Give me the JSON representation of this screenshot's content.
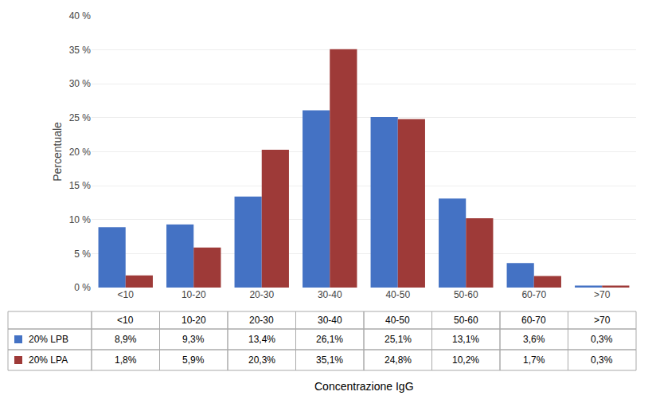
{
  "chart_data": {
    "type": "bar",
    "categories": [
      "<10",
      "10-20",
      "20-30",
      "30-40",
      "40-50",
      "50-60",
      "60-70",
      ">70"
    ],
    "series": [
      {
        "name": "20% LPB",
        "color": "#4472C4",
        "values": [
          8.9,
          9.3,
          13.4,
          26.1,
          25.1,
          13.1,
          3.6,
          0.3
        ],
        "value_labels": [
          "8,9%",
          "9,3%",
          "13,4%",
          "26,1%",
          "25,1%",
          "13,1%",
          "3,6%",
          "0,3%"
        ]
      },
      {
        "name": "20% LPA",
        "color": "#9E3A38",
        "values": [
          1.8,
          5.9,
          20.3,
          35.1,
          24.8,
          10.2,
          1.7,
          0.3
        ],
        "value_labels": [
          "1,8%",
          "5,9%",
          "20,3%",
          "35,1%",
          "24,8%",
          "10,2%",
          "1,7%",
          "0,3%"
        ]
      }
    ],
    "xlabel": "Concentrazione IgG",
    "ylabel": "Percentuale",
    "ylim": [
      0,
      40
    ],
    "yticks": [
      {
        "value": 0,
        "label": "0 %"
      },
      {
        "value": 5,
        "label": "5 %"
      },
      {
        "value": 10,
        "label": "10 %"
      },
      {
        "value": 15,
        "label": "15 %"
      },
      {
        "value": 20,
        "label": "20 %"
      },
      {
        "value": 25,
        "label": "25 %"
      },
      {
        "value": 30,
        "label": "30 %"
      },
      {
        "value": 35,
        "label": "35 %"
      },
      {
        "value": 40,
        "label": "40 %"
      }
    ],
    "grid": true
  }
}
